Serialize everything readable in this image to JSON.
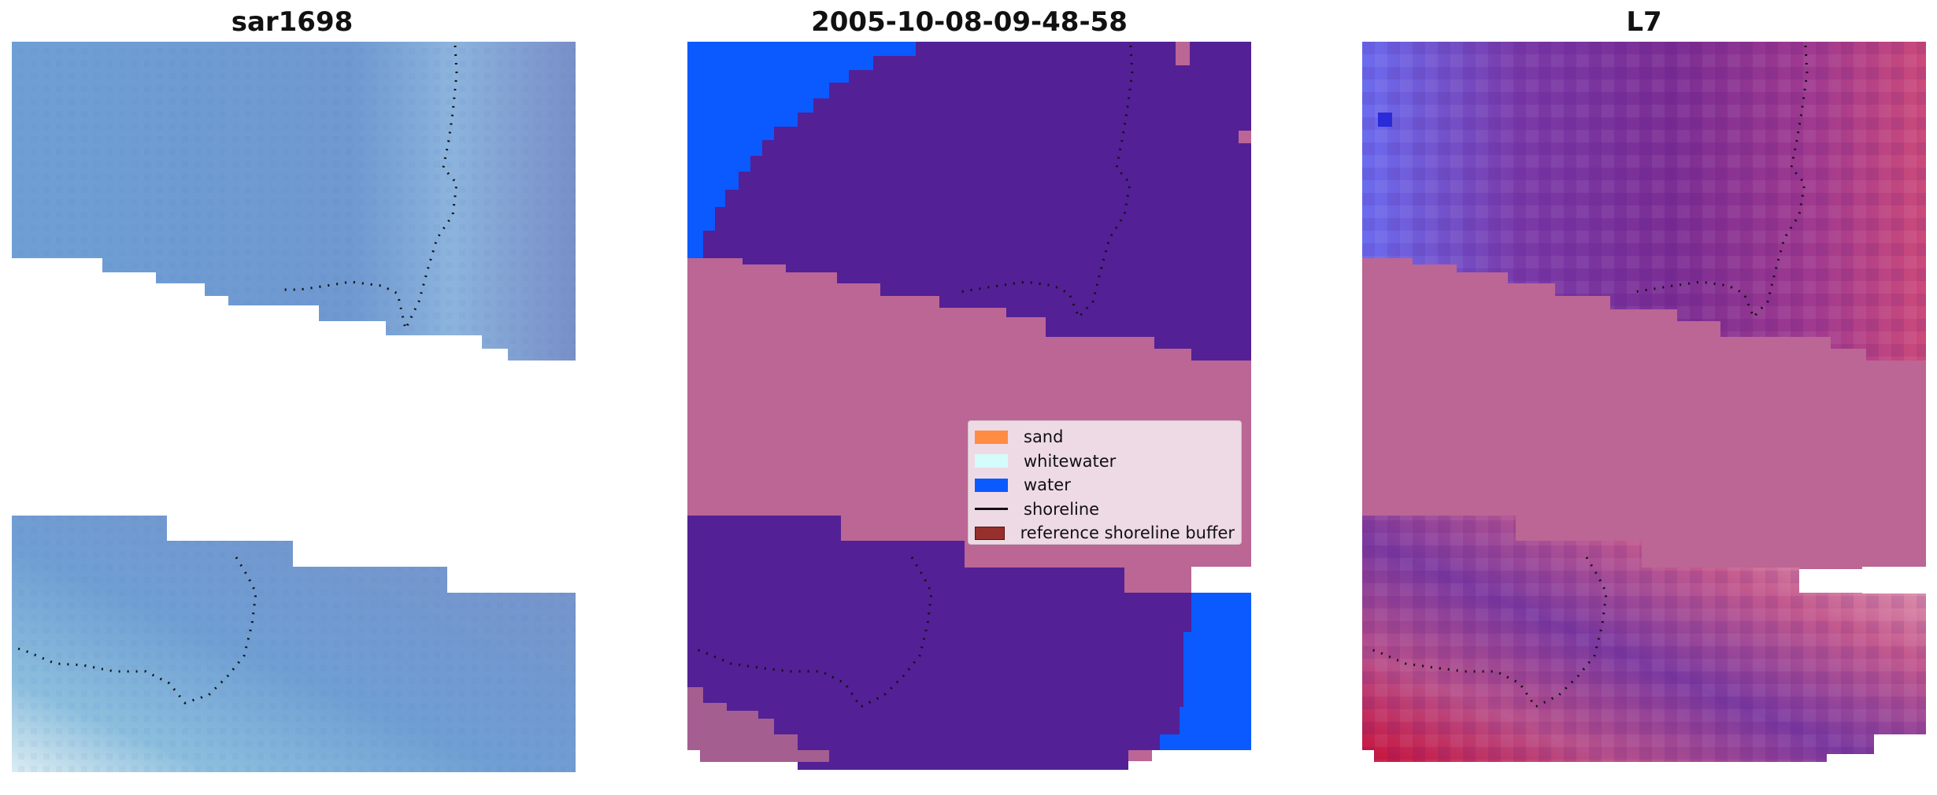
{
  "panels": [
    {
      "title": "sar1698"
    },
    {
      "title": "2005-10-08-09-48-58"
    },
    {
      "title": "L7"
    }
  ],
  "legend": {
    "items": [
      {
        "label": "sand",
        "color": "#ff8c42",
        "kind": "patch"
      },
      {
        "label": "whitewater",
        "color": "#d6fbfb",
        "kind": "patch"
      },
      {
        "label": "water",
        "color": "#0a5aff",
        "kind": "patch"
      },
      {
        "label": "shoreline",
        "color": "#111111",
        "kind": "line"
      },
      {
        "label": "reference shoreline buffer",
        "color": "#96302c",
        "kind": "patch",
        "edge": "#5a1010"
      }
    ]
  },
  "colors": {
    "satellite_blue": "#6f98cf",
    "class_other": "#bb6694",
    "class_dark": "#532096",
    "class_water": "#0a5aff",
    "shoreline_points": "#111111"
  }
}
